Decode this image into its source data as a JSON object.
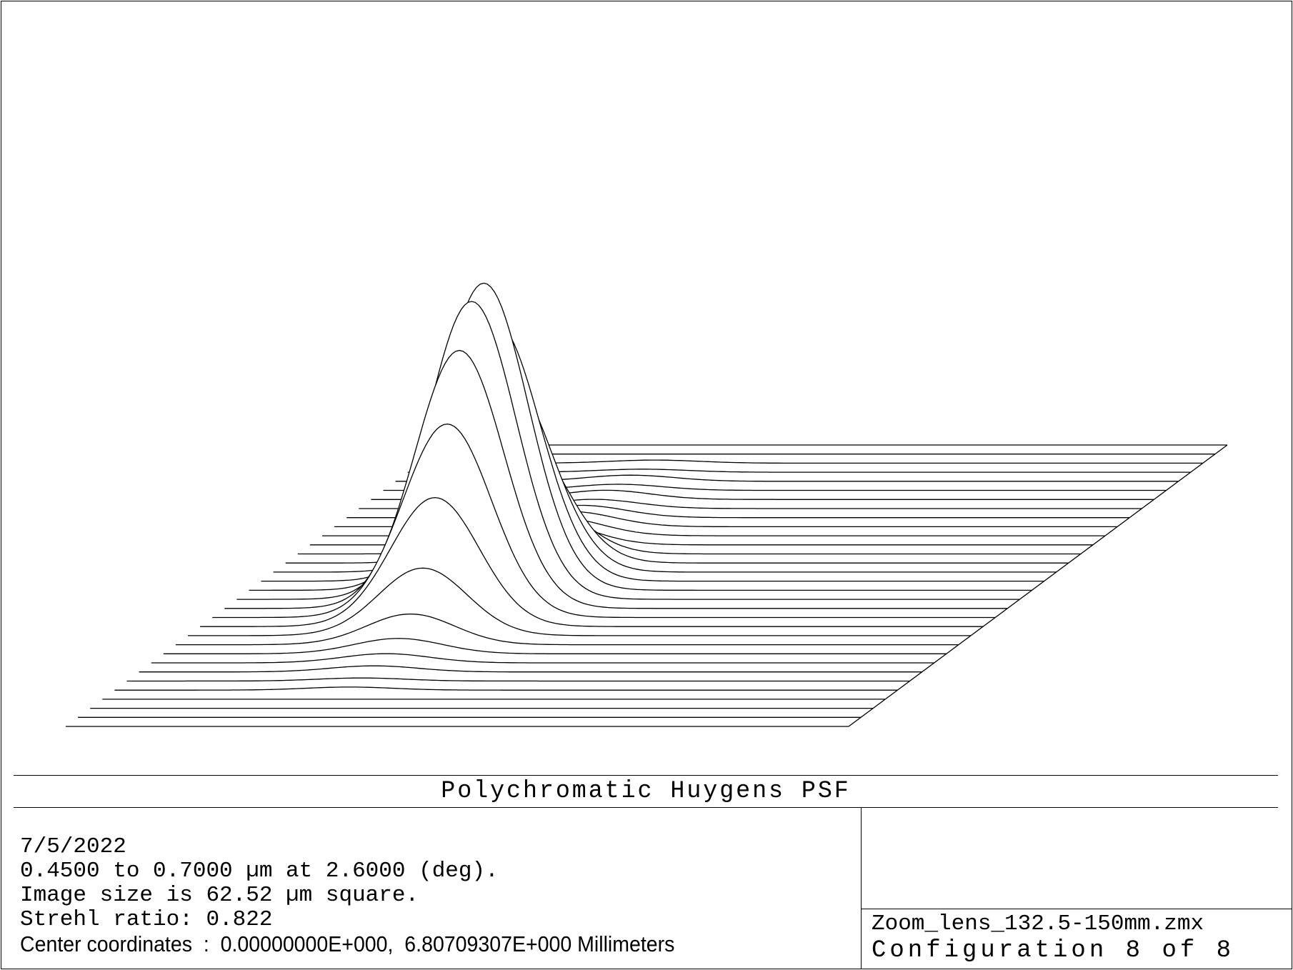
{
  "chart_data": {
    "type": "surface",
    "title": "Polychromatic Huygens PSF",
    "grid": false,
    "legend": "none",
    "peak_relative": 1.0,
    "num_trace_lines": 32,
    "trace_peaks": [
      0.0,
      0.0,
      0.01,
      0.01,
      0.02,
      0.02,
      0.03,
      0.03,
      0.04,
      0.05,
      0.06,
      0.08,
      0.2,
      0.42,
      0.63,
      0.84,
      1.0,
      0.97,
      0.84,
      0.63,
      0.42,
      0.22,
      0.1,
      0.05,
      0.03,
      0.02,
      0.01,
      0.01,
      0.0,
      0.0,
      0.0,
      0.0
    ]
  },
  "info": {
    "date": "7/5/2022",
    "wavelength": "0.4500 to 0.7000 µm at 2.6000 (deg).",
    "image_size": "Image size is 62.52 µm square.",
    "strehl": "Strehl ratio: 0.822",
    "center": "Center coordinates  :  0.00000000E+000,  6.80709307E+000 Millimeters"
  },
  "file_box": {
    "filename": "Zoom_lens_132.5-150mm.zmx",
    "configuration": "Configuration 8 of 8"
  }
}
